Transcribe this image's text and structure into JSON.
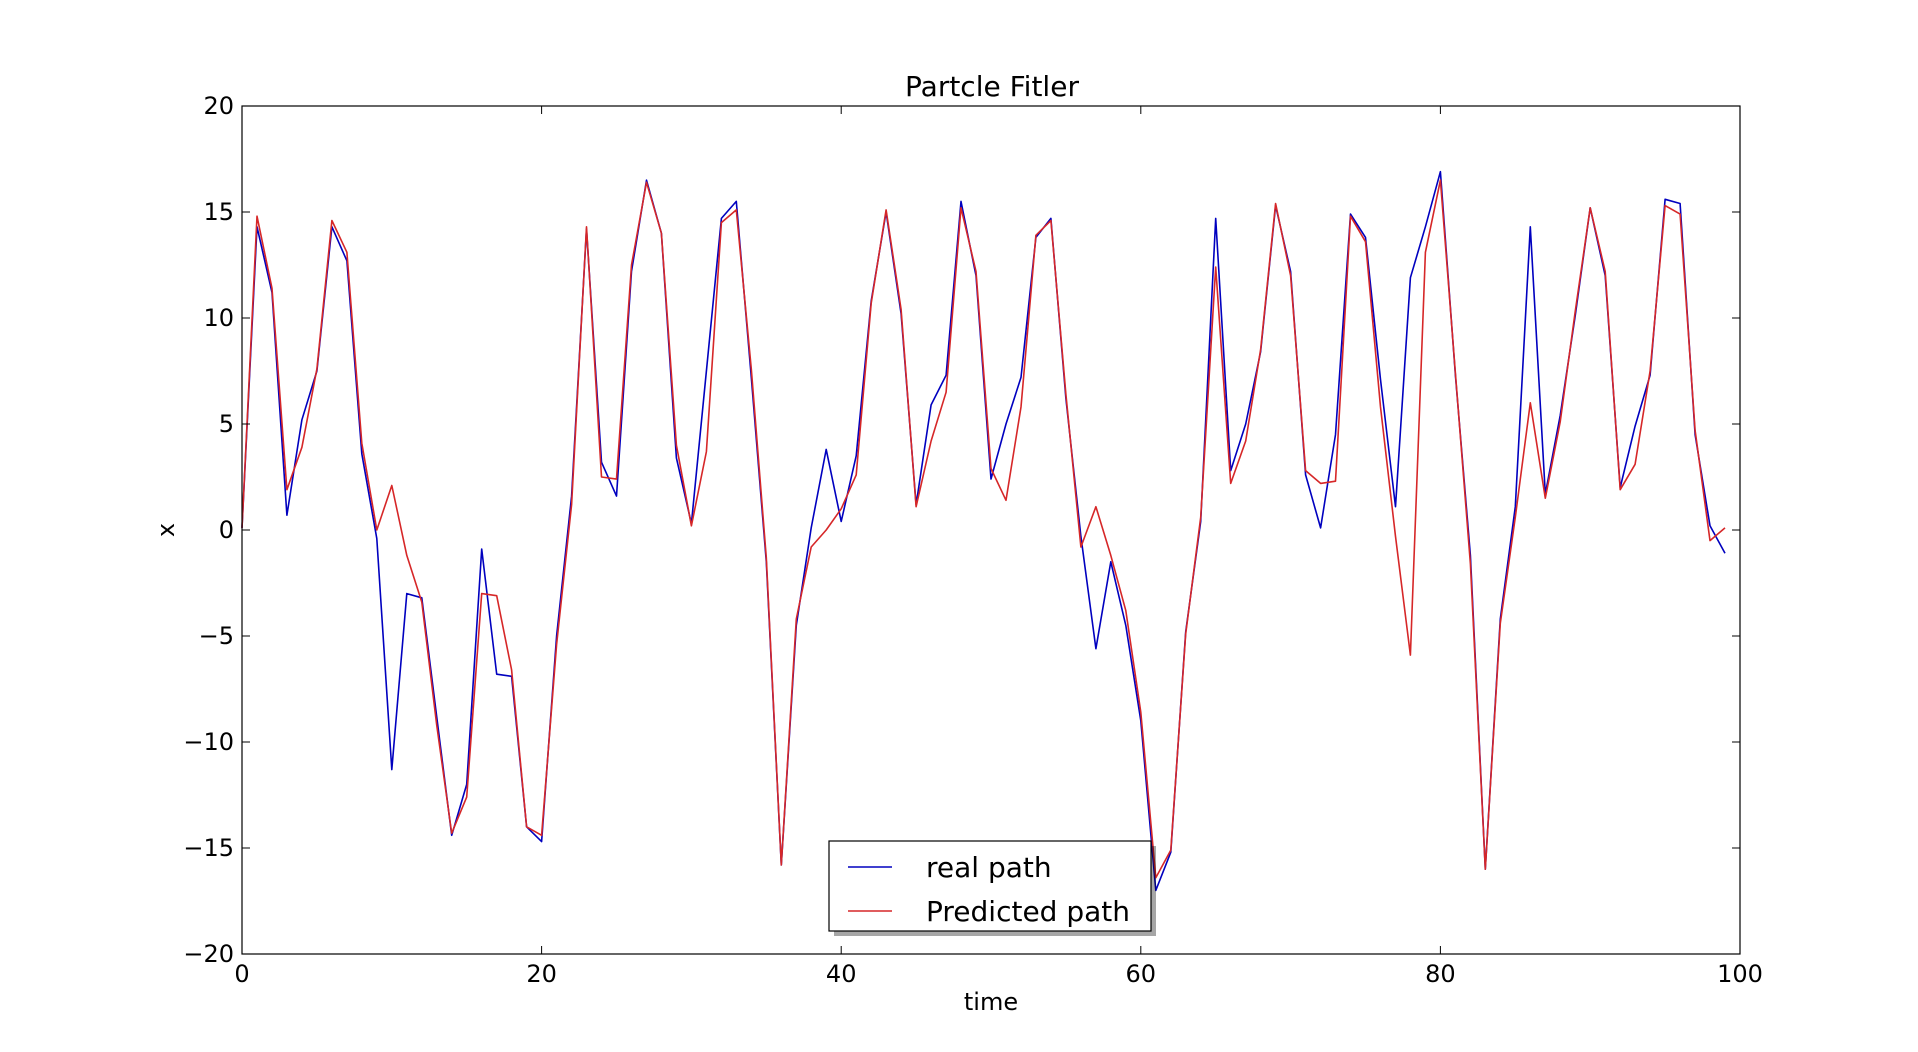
{
  "chart_data": {
    "type": "line",
    "title": "Partcle Fitler",
    "xlabel": "time",
    "ylabel": "x",
    "xlim": [
      0,
      100
    ],
    "ylim": [
      -20,
      20
    ],
    "xticks": [
      0,
      20,
      40,
      60,
      80,
      100
    ],
    "yticks": [
      -20,
      -15,
      -10,
      -5,
      0,
      5,
      10,
      15,
      20
    ],
    "grid": false,
    "legend": {
      "location": "bottom-center"
    },
    "x": [
      0,
      1,
      2,
      3,
      4,
      5,
      6,
      7,
      8,
      9,
      10,
      11,
      12,
      13,
      14,
      15,
      16,
      17,
      18,
      19,
      20,
      21,
      22,
      23,
      24,
      25,
      26,
      27,
      28,
      29,
      30,
      31,
      32,
      33,
      34,
      35,
      36,
      37,
      38,
      39,
      40,
      41,
      42,
      43,
      44,
      45,
      46,
      47,
      48,
      49,
      50,
      51,
      52,
      53,
      54,
      55,
      56,
      57,
      58,
      59,
      60,
      61,
      62,
      63,
      64,
      65,
      66,
      67,
      68,
      69,
      70,
      71,
      72,
      73,
      74,
      75,
      76,
      77,
      78,
      79,
      80,
      81,
      82,
      83,
      84,
      85,
      86,
      87,
      88,
      89,
      90,
      91,
      92,
      93,
      94,
      95,
      96,
      97,
      98,
      99
    ],
    "series": [
      {
        "name": "real path",
        "color": "#0000bf",
        "values": [
          0.1,
          14.3,
          11.2,
          0.7,
          5.2,
          7.5,
          14.3,
          12.7,
          3.6,
          -0.4,
          -11.3,
          -3.0,
          -3.2,
          -8.8,
          -14.4,
          -12.0,
          -0.9,
          -6.8,
          -6.9,
          -14.0,
          -14.7,
          -5.0,
          1.6,
          14.2,
          3.2,
          1.6,
          12.2,
          16.5,
          14.0,
          3.4,
          0.3,
          7.5,
          14.7,
          15.5,
          7.2,
          -1.5,
          -15.8,
          -4.5,
          0.1,
          3.8,
          0.4,
          3.5,
          10.8,
          15.0,
          10.2,
          1.2,
          5.9,
          7.3,
          15.5,
          12.0,
          2.4,
          5.0,
          7.2,
          13.8,
          14.7,
          6.2,
          -0.3,
          -5.6,
          -1.5,
          -4.5,
          -9.0,
          -17.0,
          -15.2,
          -4.8,
          0.4,
          14.7,
          2.8,
          5.0,
          8.4,
          15.3,
          12.2,
          2.6,
          0.1,
          4.5,
          14.9,
          13.8,
          7.1,
          1.1,
          11.9,
          14.3,
          16.9,
          7.3,
          -1.2,
          -16.0,
          -4.2,
          1.1,
          14.3,
          1.7,
          5.4,
          10.1,
          15.2,
          12.0,
          2.0,
          4.9,
          7.3,
          15.6,
          15.4,
          4.5,
          0.2,
          -1.1
        ]
      },
      {
        "name": "Predicted path",
        "color": "#d62728",
        "values": [
          0.1,
          14.8,
          11.4,
          1.9,
          3.9,
          7.6,
          14.6,
          13.1,
          4.1,
          0.0,
          2.1,
          -1.2,
          -3.4,
          -9.2,
          -14.3,
          -12.6,
          -3.0,
          -3.1,
          -6.6,
          -14.0,
          -14.4,
          -5.4,
          1.2,
          14.3,
          2.5,
          2.4,
          12.5,
          16.4,
          14.0,
          4.0,
          0.2,
          3.7,
          14.5,
          15.1,
          7.6,
          -1.3,
          -15.8,
          -4.2,
          -0.8,
          0.0,
          1.0,
          2.6,
          10.7,
          15.1,
          10.4,
          1.1,
          4.2,
          6.5,
          15.2,
          12.2,
          2.9,
          1.4,
          5.8,
          13.9,
          14.6,
          6.4,
          -0.8,
          1.1,
          -1.2,
          -3.8,
          -8.6,
          -16.4,
          -15.1,
          -4.9,
          0.6,
          12.4,
          2.2,
          4.2,
          8.5,
          15.4,
          12.0,
          2.8,
          2.2,
          2.3,
          14.8,
          13.6,
          5.8,
          -0.3,
          -5.9,
          13.1,
          16.5,
          7.4,
          -1.6,
          -16.0,
          -4.4,
          0.6,
          6.0,
          1.5,
          5.1,
          10.3,
          15.2,
          12.2,
          1.9,
          3.1,
          7.5,
          15.3,
          14.9,
          4.7,
          -0.5,
          0.1
        ]
      }
    ]
  }
}
